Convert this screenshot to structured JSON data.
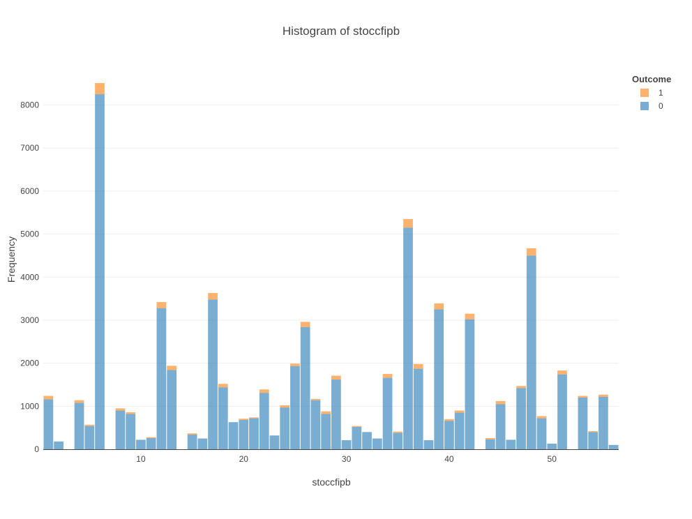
{
  "chart_data": {
    "type": "bar",
    "stacked": true,
    "title": "Histogram of stoccfipb",
    "xlabel": "stoccfipb",
    "ylabel": "Frequency",
    "legend_title": "Outcome",
    "legend_position": "top-right",
    "grid": true,
    "xlim": [
      0.5,
      56.5
    ],
    "ylim": [
      0,
      8900
    ],
    "x_ticks": [
      10,
      20,
      30,
      40,
      50
    ],
    "y_ticks": [
      0,
      1000,
      2000,
      3000,
      4000,
      5000,
      6000,
      7000,
      8000
    ],
    "x": [
      1,
      2,
      3,
      4,
      5,
      6,
      7,
      8,
      9,
      10,
      11,
      12,
      13,
      14,
      15,
      16,
      17,
      18,
      19,
      20,
      21,
      22,
      23,
      24,
      25,
      26,
      27,
      28,
      29,
      30,
      31,
      32,
      33,
      34,
      35,
      36,
      37,
      38,
      39,
      40,
      41,
      42,
      43,
      44,
      45,
      46,
      47,
      48,
      49,
      50,
      51,
      52,
      53,
      54,
      55,
      56
    ],
    "series": [
      {
        "name": "0",
        "color": "#1f77b4",
        "values": [
          1160,
          180,
          0,
          1080,
          540,
          8250,
          0,
          900,
          820,
          220,
          260,
          3280,
          1840,
          0,
          340,
          250,
          3480,
          1440,
          630,
          680,
          720,
          1310,
          320,
          970,
          1930,
          2840,
          1140,
          820,
          1620,
          210,
          520,
          400,
          250,
          1660,
          380,
          5150,
          1870,
          210,
          3250,
          660,
          850,
          3020,
          0,
          230,
          1050,
          220,
          1420,
          4500,
          720,
          130,
          1740,
          0,
          1200,
          400,
          1220,
          100
        ]
      },
      {
        "name": "1",
        "color": "#ff7f0e",
        "values": [
          80,
          0,
          0,
          60,
          30,
          260,
          0,
          50,
          40,
          0,
          20,
          140,
          100,
          0,
          30,
          0,
          150,
          80,
          0,
          30,
          20,
          80,
          0,
          50,
          60,
          120,
          30,
          60,
          90,
          0,
          20,
          0,
          0,
          90,
          30,
          200,
          110,
          0,
          140,
          40,
          50,
          130,
          0,
          30,
          70,
          0,
          50,
          170,
          50,
          0,
          90,
          0,
          40,
          20,
          50,
          0
        ]
      }
    ]
  }
}
